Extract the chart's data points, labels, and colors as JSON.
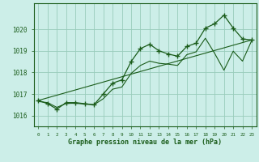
{
  "title": "Graphe pression niveau de la mer (hPa)",
  "bg_color": "#cceee8",
  "grid_color": "#99ccbb",
  "line_color": "#1a5c1a",
  "xlim": [
    -0.5,
    23.5
  ],
  "ylim": [
    1015.5,
    1021.2
  ],
  "yticks": [
    1016,
    1017,
    1018,
    1019,
    1020
  ],
  "xticks": [
    0,
    1,
    2,
    3,
    4,
    5,
    6,
    7,
    8,
    9,
    10,
    11,
    12,
    13,
    14,
    15,
    16,
    17,
    18,
    19,
    20,
    21,
    22,
    23
  ],
  "main_x": [
    0,
    1,
    2,
    3,
    4,
    5,
    6,
    7,
    8,
    9,
    10,
    11,
    12,
    13,
    14,
    15,
    16,
    17,
    18,
    19,
    20,
    21,
    22,
    23
  ],
  "main_y": [
    1016.7,
    1016.55,
    1016.3,
    1016.6,
    1016.6,
    1016.55,
    1016.5,
    1017.0,
    1017.5,
    1017.65,
    1018.5,
    1019.1,
    1019.3,
    1019.0,
    1018.85,
    1018.75,
    1019.2,
    1019.35,
    1020.05,
    1020.25,
    1020.65,
    1020.05,
    1019.55,
    1019.5
  ],
  "trend_x": [
    0,
    23
  ],
  "trend_y": [
    1016.7,
    1019.5
  ],
  "smooth_x": [
    0,
    1,
    2,
    3,
    4,
    5,
    6,
    7,
    8,
    9,
    10,
    11,
    12,
    13,
    14,
    15,
    16,
    17,
    18,
    19,
    20,
    21,
    22,
    23
  ],
  "smooth_y": [
    1016.65,
    1016.6,
    1016.38,
    1016.56,
    1016.57,
    1016.53,
    1016.5,
    1016.78,
    1017.22,
    1017.32,
    1017.95,
    1018.32,
    1018.52,
    1018.42,
    1018.38,
    1018.32,
    1018.82,
    1018.95,
    1019.58,
    1018.88,
    1018.1,
    1018.98,
    1018.52,
    1019.48
  ]
}
